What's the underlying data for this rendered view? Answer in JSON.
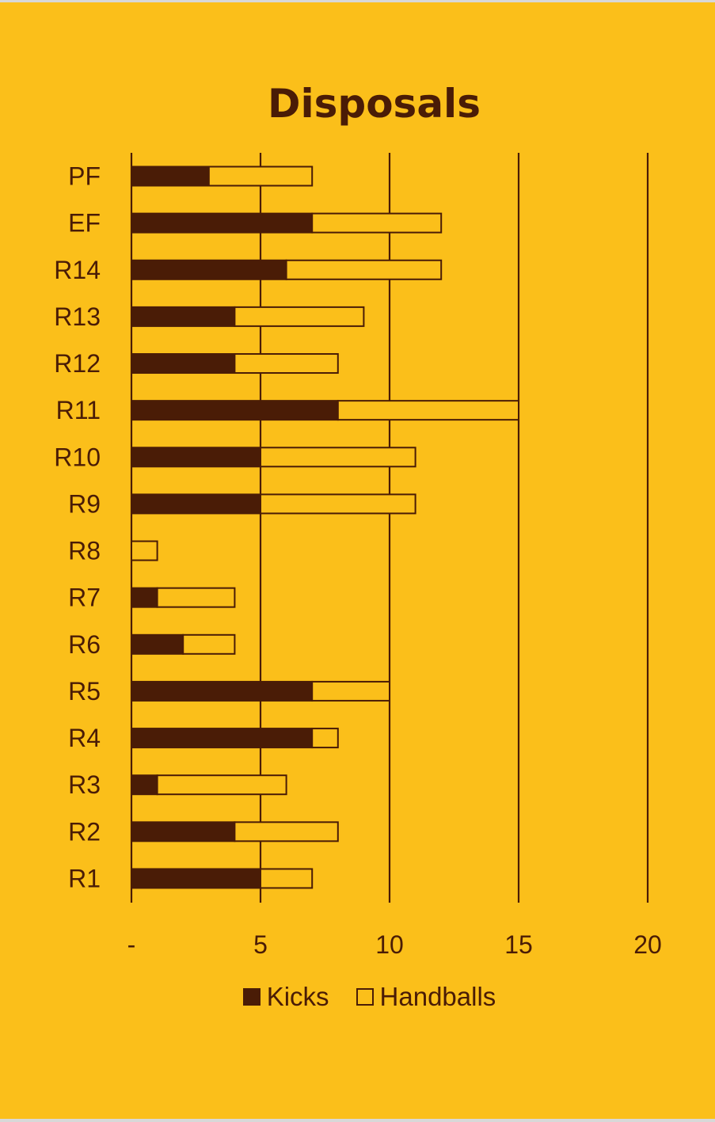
{
  "chart_data": {
    "type": "bar",
    "orientation": "horizontal",
    "stacked": true,
    "title": "Disposals",
    "categories": [
      "PF",
      "EF",
      "R14",
      "R13",
      "R12",
      "R11",
      "R10",
      "R9",
      "R8",
      "R7",
      "R6",
      "R5",
      "R4",
      "R3",
      "R2",
      "R1"
    ],
    "series": [
      {
        "name": "Kicks",
        "color": "#4a1c06",
        "values": [
          3,
          7,
          6,
          4,
          4,
          8,
          5,
          5,
          0,
          1,
          2,
          7,
          7,
          1,
          4,
          5
        ]
      },
      {
        "name": "Handballs",
        "color": "#fbbf1a",
        "values": [
          4,
          5,
          6,
          5,
          4,
          7,
          6,
          6,
          1,
          3,
          2,
          3,
          1,
          5,
          4,
          2
        ]
      }
    ],
    "xlim": [
      0,
      20
    ],
    "xticks": [
      0,
      5,
      10,
      15,
      20
    ],
    "xtick_labels": [
      "-",
      "5",
      "10",
      "15",
      "20"
    ],
    "grid": "vertical",
    "legend_position": "bottom"
  },
  "colors": {
    "background": "#fbbf1a",
    "ink": "#4a1c06"
  }
}
